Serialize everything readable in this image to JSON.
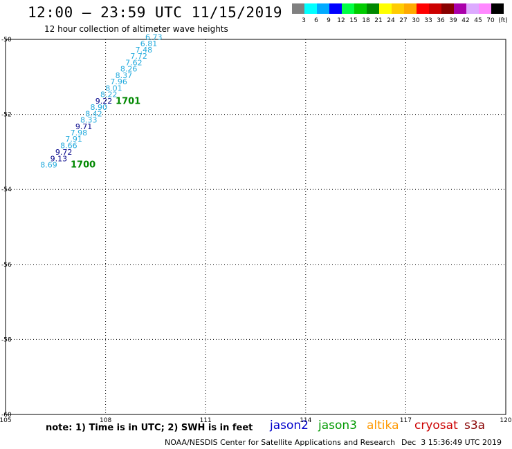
{
  "header": {
    "title": "12:00 — 23:59 UTC 11/15/2019",
    "subtitle": "12 hour collection of altimeter wave heights"
  },
  "colors": {
    "scale": [
      "#808080",
      "#00ffff",
      "#00aaff",
      "#0000ff",
      "#00ff44",
      "#00cc00",
      "#008800",
      "#ffff00",
      "#ffcc00",
      "#ffaa00",
      "#ff0000",
      "#cc0000",
      "#880000",
      "#aa00aa",
      "#ddaaff",
      "#ff88ff",
      "#000000"
    ],
    "jason2": "#0000cc",
    "jason3": "#009900",
    "altika": "#ff9900",
    "cryosat": "#cc0000",
    "s3a": "#880000",
    "track_points": "#22aadd",
    "track_points_alt": "#000088",
    "track_label": "#008800",
    "grid": "#000000"
  },
  "colorbar": {
    "ticks": [
      "3",
      "6",
      "9",
      "12",
      "15",
      "18",
      "21",
      "24",
      "27",
      "30",
      "33",
      "36",
      "39",
      "42",
      "45",
      "70",
      "(ft)"
    ]
  },
  "chart_data": {
    "type": "scatter",
    "xlim": [
      105,
      120
    ],
    "ylim": [
      -60,
      -50
    ],
    "x_ticks": [
      "105",
      "108",
      "111",
      "114",
      "117",
      "120"
    ],
    "y_ticks": [
      "-50",
      "-52",
      "-54",
      "-56",
      "-58",
      "-60"
    ],
    "grid": true,
    "points": [
      {
        "x": 106.55,
        "y": -53.42,
        "label": "8.69",
        "alt": false
      },
      {
        "x": 106.85,
        "y": -53.25,
        "label": "9.13",
        "alt": true
      },
      {
        "x": 107.0,
        "y": -53.08,
        "label": "9.72",
        "alt": true
      },
      {
        "x": 107.15,
        "y": -52.9,
        "label": "8.66",
        "alt": false
      },
      {
        "x": 107.3,
        "y": -52.73,
        "label": "7.91",
        "alt": false
      },
      {
        "x": 107.45,
        "y": -52.56,
        "label": "7.98",
        "alt": false
      },
      {
        "x": 107.6,
        "y": -52.39,
        "label": "9.71",
        "alt": true
      },
      {
        "x": 107.75,
        "y": -52.22,
        "label": "8.33",
        "alt": false
      },
      {
        "x": 107.9,
        "y": -52.05,
        "label": "8.42",
        "alt": false
      },
      {
        "x": 108.05,
        "y": -51.88,
        "label": "8.90",
        "alt": false
      },
      {
        "x": 108.2,
        "y": -51.71,
        "label": "9.22",
        "alt": true
      },
      {
        "x": 108.35,
        "y": -51.54,
        "label": "8.22",
        "alt": false
      },
      {
        "x": 108.5,
        "y": -51.37,
        "label": "8.01",
        "alt": false
      },
      {
        "x": 108.65,
        "y": -51.2,
        "label": "7.96",
        "alt": false
      },
      {
        "x": 108.8,
        "y": -51.03,
        "label": "8.37",
        "alt": false
      },
      {
        "x": 108.95,
        "y": -50.86,
        "label": "8.26",
        "alt": false
      },
      {
        "x": 109.1,
        "y": -50.69,
        "label": "7.62",
        "alt": false
      },
      {
        "x": 109.25,
        "y": -50.52,
        "label": "7.72",
        "alt": false
      },
      {
        "x": 109.4,
        "y": -50.35,
        "label": "7.48",
        "alt": false
      },
      {
        "x": 109.55,
        "y": -50.18,
        "label": "6.81",
        "alt": false
      },
      {
        "x": 109.7,
        "y": -50.01,
        "label": "6.73",
        "alt": false
      }
    ],
    "track_labels": [
      {
        "x": 106.95,
        "y": -53.42,
        "label": "1700"
      },
      {
        "x": 108.3,
        "y": -51.72,
        "label": "1701"
      }
    ]
  },
  "footer": {
    "note": "note: 1) Time is in UTC; 2) SWH is in feet",
    "satellites": {
      "jason2": "jason2",
      "jason3": "jason3",
      "altika": "altika",
      "cryosat": "cryosat",
      "s3a": "s3a"
    },
    "credit": "NOAA/NESDIS Center for Satellite Applications and Research",
    "timestamp": "Dec  3 15:36:49 UTC 2019"
  }
}
